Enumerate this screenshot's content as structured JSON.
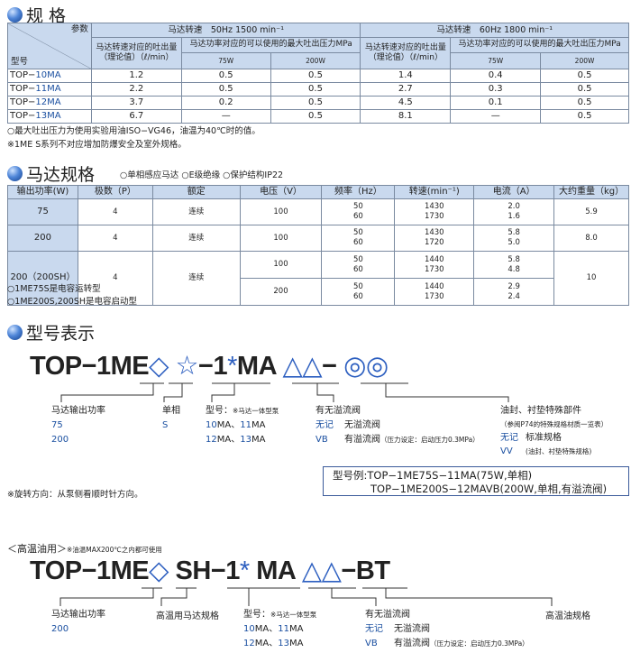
{
  "spec": {
    "title": "规 格",
    "param": "参数",
    "model": "型号",
    "hz50": "马达转速　50Hz 1500 min⁻¹",
    "hz60": "马达转速　60Hz 1800 min⁻¹",
    "flow": "马达转速对应的吐出量（理论值）（ℓ/min）",
    "pressure": "马达功率对应的可以使用的最大吐出压力MPa",
    "w75": "75W",
    "w200": "200W",
    "rows": [
      {
        "prefix": "TOP−",
        "code": "10MA",
        "v": [
          "1.2",
          "0.5",
          "0.5",
          "1.4",
          "0.4",
          "0.5"
        ]
      },
      {
        "prefix": "TOP−",
        "code": "11MA",
        "v": [
          "2.2",
          "0.5",
          "0.5",
          "2.7",
          "0.3",
          "0.5"
        ]
      },
      {
        "prefix": "TOP−",
        "code": "12MA",
        "v": [
          "3.7",
          "0.2",
          "0.5",
          "4.5",
          "0.1",
          "0.5"
        ]
      },
      {
        "prefix": "TOP−",
        "code": "13MA",
        "v": [
          "6.7",
          "—",
          "0.5",
          "8.1",
          "—",
          "0.5"
        ]
      }
    ],
    "notes": [
      "○最大吐出压力为使用实验用油ISO−VG46，油温为40℃时的值。",
      "※1ME S系列不对应增加防爆安全及室外规格。"
    ]
  },
  "motor": {
    "title": "马达规格",
    "features": "○单相感应马达 ○E级绝缘 ○保护结构IP22",
    "headers": [
      "输出功率(W)",
      "极数（P）",
      "额定",
      "电压（V）",
      "频率（Hz）",
      "转速(min⁻¹)",
      "电流（A）",
      "大约重量（kg）"
    ],
    "r1": {
      "w": "75",
      "p": "4",
      "r": "连续",
      "v": "100",
      "f": "50\n60",
      "s": "1430\n1730",
      "a": "2.0\n1.6",
      "kg": "5.9"
    },
    "r2": {
      "w": "200",
      "p": "4",
      "r": "连续",
      "v": "100",
      "f": "50\n60",
      "s": "1430\n1720",
      "a": "5.8\n5.0",
      "kg": "8.0"
    },
    "r3": {
      "w": "200（200SH）",
      "p": "4",
      "r": "连续",
      "v1": "100",
      "f1": "50\n60",
      "s1": "1440\n1730",
      "a1": "5.8\n4.8",
      "v2": "200",
      "f2": "50\n60",
      "s2": "1440\n1730",
      "a2": "2.9\n2.4",
      "kg": "10"
    },
    "notes": [
      "○1ME75S是电容运转型",
      "○1ME200S,200SH是电容启动型"
    ]
  },
  "code": {
    "title": "型号表示",
    "d1": {
      "p1": "TOP−1ME",
      "s1": "◇",
      "s2": "☆",
      "p2": "−1",
      "s3": "*",
      "p3": "MA",
      "s4": "△△",
      "p4": "−",
      "s5": "◎◎",
      "power": "马达输出功率",
      "power_opts": [
        "75",
        "200"
      ],
      "phase": "单相",
      "phase_opt": "S",
      "model": "型号：",
      "model_note": "※马达一体型泵",
      "m1a": "10",
      "m1b": "MA、",
      "m1c": "11",
      "m1d": "MA",
      "m2a": "12",
      "m2b": "MA、",
      "m2c": "13",
      "m2d": "MA",
      "valve": "有无溢流阀",
      "none": "无记",
      "none_txt": "无溢流阀",
      "vb": "VB",
      "vb_txt": "有溢流阀",
      "vb_note": "（压力设定：启动压力0.3MPa）",
      "seal": "油封、衬垫特殊部件",
      "seal_note": "（参阅P74的特殊规格材质一览表）",
      "std": "标准规格",
      "vv": "VV",
      "vv_txt": "(油封、衬垫特殊规格)"
    },
    "rotation": "※旋转方向：从泵侧看顺时针方向。",
    "example": [
      "型号例:TOP−1ME75S−11MA(75W,单相)",
      "TOP−1ME200S−12MAVB(200W,单相,有溢流阀)"
    ],
    "hot_title": "＜高温油用＞",
    "hot_note": "※油温MAX200℃之内都可使用",
    "d2": {
      "p1": "TOP−1ME",
      "s1": "◇",
      "p2": "SH−1",
      "s3": "*",
      "p3": "MA",
      "s4": "△△",
      "p4": "−BT",
      "power": "马达输出功率",
      "power_opt": "200",
      "hot_motor": "高温用马达规格",
      "hot_oil": "高温油规格"
    }
  },
  "colors": {
    "header_bg": "#c9d9ee",
    "accent": "#1a4fa0"
  }
}
